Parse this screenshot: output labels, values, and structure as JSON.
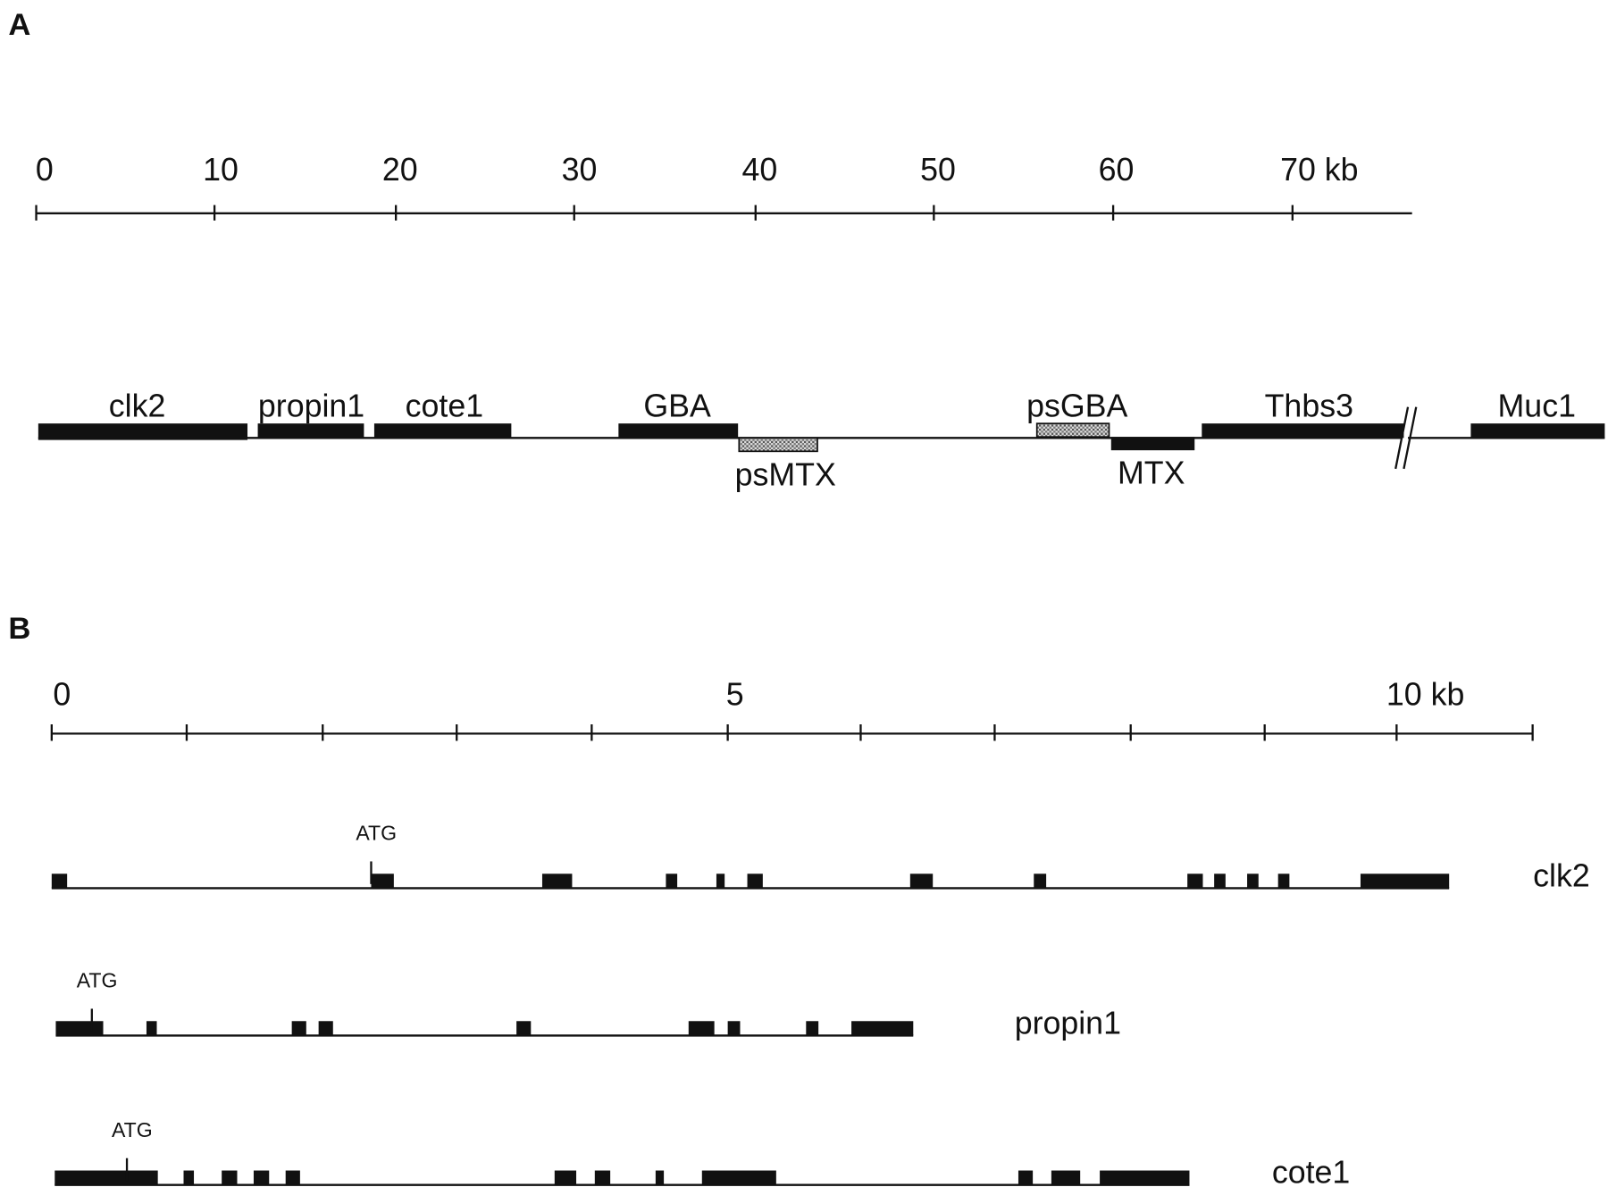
{
  "panel_a": {
    "label": "A",
    "scale": [
      "0",
      "10",
      "20",
      "30",
      "40",
      "50",
      "60",
      "70 kb"
    ],
    "genes": [
      "clk2",
      "propin1",
      "cote1",
      "GBA",
      "psMTX",
      "psGBA",
      "MTX",
      "Thbs3",
      "Muc1"
    ]
  },
  "panel_b": {
    "label": "B",
    "scale": [
      "0",
      "5",
      "10 kb"
    ],
    "genes": [
      {
        "name": "clk2",
        "marker": "ATG"
      },
      {
        "name": "propin1",
        "marker": "ATG"
      },
      {
        "name": "cote1",
        "marker": "ATG"
      }
    ]
  }
}
